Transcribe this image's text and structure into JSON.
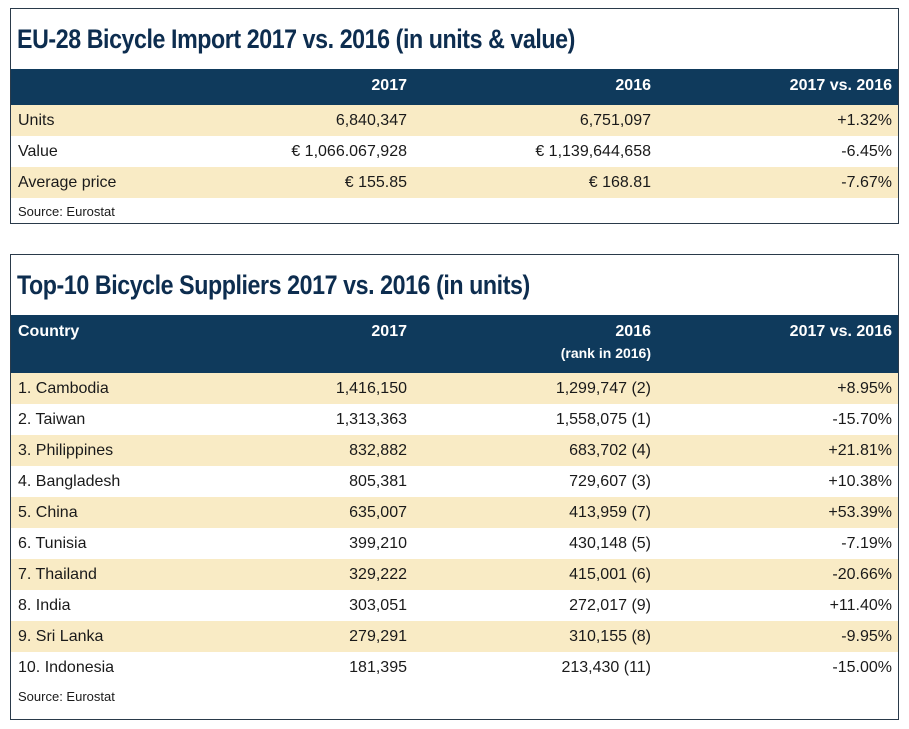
{
  "import_table": {
    "title": "EU-28 Bicycle Import 2017 vs. 2016 (in units & value)",
    "headers": [
      "",
      "2017",
      "2016",
      "2017 vs. 2016"
    ],
    "rows": [
      [
        "Units",
        "6,840,347",
        "6,751,097",
        "+1.32%"
      ],
      [
        "Value",
        "€ 1,066.067,928",
        "€ 1,139,644,658",
        "-6.45%"
      ],
      [
        "Average price",
        "€ 155.85",
        "€ 168.81",
        "-7.67%"
      ]
    ],
    "source": "Source: Eurostat"
  },
  "suppliers_table": {
    "title": "Top-10 Bicycle Suppliers 2017 vs. 2016 (in units)",
    "headers": [
      "Country",
      "2017",
      "2016",
      "2017 vs. 2016"
    ],
    "header_sub": "(rank in 2016)",
    "rows": [
      [
        "1. Cambodia",
        "1,416,150",
        "1,299,747 (2)",
        "+8.95%"
      ],
      [
        "2. Taiwan",
        "1,313,363",
        "1,558,075 (1)",
        "-15.70%"
      ],
      [
        "3. Philippines",
        "832,882",
        "683,702 (4)",
        "+21.81%"
      ],
      [
        "4. Bangladesh",
        "805,381",
        "729,607 (3)",
        "+10.38%"
      ],
      [
        "5. China",
        "635,007",
        "413,959 (7)",
        "+53.39%"
      ],
      [
        "6. Tunisia",
        "399,210",
        "430,148 (5)",
        "-7.19%"
      ],
      [
        "7. Thailand",
        "329,222",
        "415,001 (6)",
        "-20.66%"
      ],
      [
        "8. India",
        "303,051",
        "272,017 (9)",
        "+11.40%"
      ],
      [
        "9. Sri Lanka",
        "279,291",
        "310,155 (8)",
        "-9.95%"
      ],
      [
        "10. Indonesia",
        "181,395",
        "213,430 (11)",
        "-15.00%"
      ]
    ],
    "source": "Source: Eurostat"
  },
  "colors": {
    "header_bg": "#0f3a5c",
    "title_text": "#0d2d4f",
    "highlight_row": "#f9ebc5"
  }
}
